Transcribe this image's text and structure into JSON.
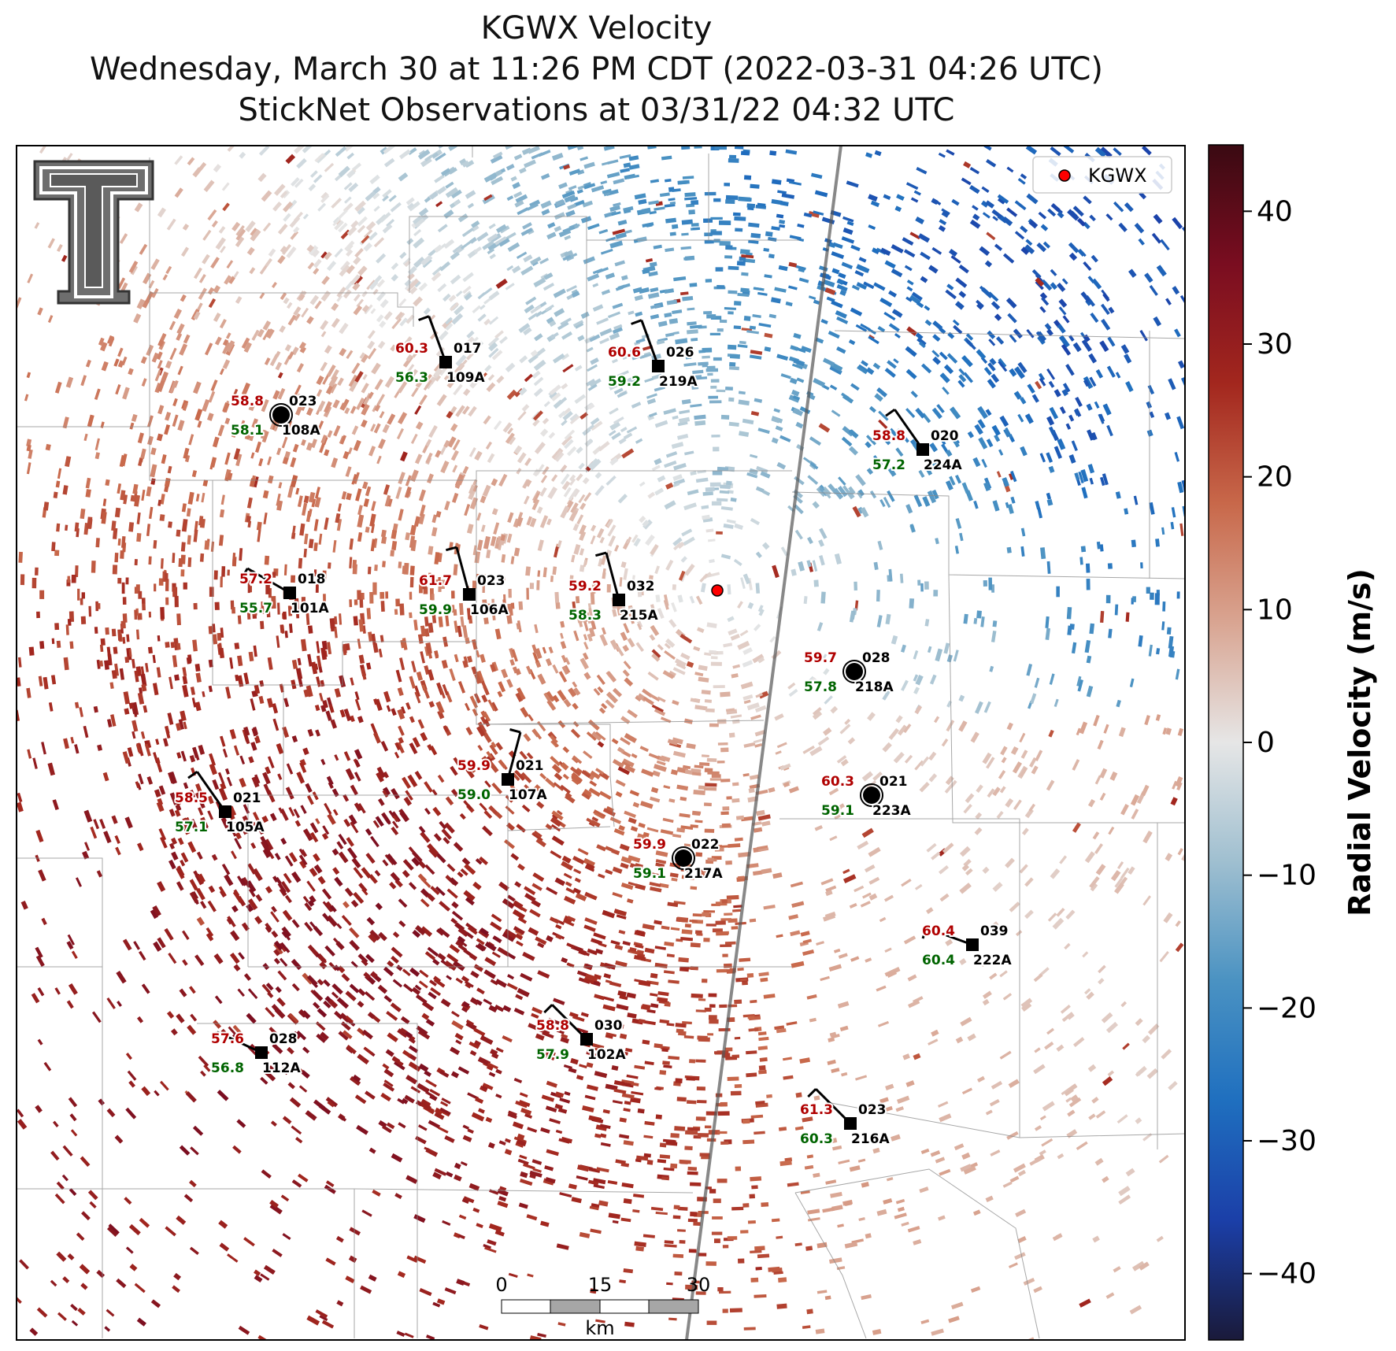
{
  "title": {
    "line1": "KGWX Velocity",
    "line2": "Wednesday, March 30 at 11:26 PM CDT (2022-03-31 04:26 UTC)",
    "line3": "StickNet Observations at 03/31/22 04:32 UTC"
  },
  "legend": {
    "label": "KGWX",
    "marker_color": "#ff0000"
  },
  "colorbar": {
    "label": "Radial Velocity (m/s)",
    "ticks": [
      "40",
      "30",
      "20",
      "10",
      "0",
      "−10",
      "−20",
      "−30",
      "−40"
    ],
    "range": [
      -45,
      45
    ],
    "colors": [
      "#1a1a3a",
      "#1b3fa8",
      "#1f6fbf",
      "#4a92c2",
      "#9fbfd0",
      "#e6e6e6",
      "#d9a592",
      "#c8684a",
      "#a3271e",
      "#7a0d20",
      "#3a0a12"
    ]
  },
  "scalebar": {
    "ticks": [
      "0",
      "15",
      "30"
    ],
    "unit": "km"
  },
  "logo": {
    "name": "Texas Tech Double T"
  },
  "stations": [
    {
      "id": "109A",
      "temp": "60.3",
      "dew": "56.3",
      "wind_dir": "017",
      "marker": "square"
    },
    {
      "id": "219A",
      "temp": "60.6",
      "dew": "59.2",
      "wind_dir": "026",
      "marker": "square"
    },
    {
      "id": "108A",
      "temp": "58.8",
      "dew": "58.1",
      "wind_dir": "023",
      "marker": "circle"
    },
    {
      "id": "224A",
      "temp": "58.8",
      "dew": "57.2",
      "wind_dir": "020",
      "marker": "square"
    },
    {
      "id": "101A",
      "temp": "57.2",
      "dew": "55.7",
      "wind_dir": "018",
      "marker": "square"
    },
    {
      "id": "106A",
      "temp": "61.7",
      "dew": "59.9",
      "wind_dir": "023",
      "marker": "square"
    },
    {
      "id": "215A",
      "temp": "59.2",
      "dew": "58.3",
      "wind_dir": "032",
      "marker": "square"
    },
    {
      "id": "218A",
      "temp": "59.7",
      "dew": "57.8",
      "wind_dir": "028",
      "marker": "circle"
    },
    {
      "id": "107A",
      "temp": "59.9",
      "dew": "59.0",
      "wind_dir": "021",
      "marker": "square"
    },
    {
      "id": "223A",
      "temp": "60.3",
      "dew": "59.1",
      "wind_dir": "021",
      "marker": "circle"
    },
    {
      "id": "105A",
      "temp": "58.5",
      "dew": "57.1",
      "wind_dir": "021",
      "marker": "square"
    },
    {
      "id": "217A",
      "temp": "59.9",
      "dew": "59.1",
      "wind_dir": "022",
      "marker": "circle"
    },
    {
      "id": "222A",
      "temp": "60.4",
      "dew": "60.4",
      "wind_dir": "039",
      "marker": "square"
    },
    {
      "id": "102A",
      "temp": "58.8",
      "dew": "57.9",
      "wind_dir": "030",
      "marker": "square"
    },
    {
      "id": "112A",
      "temp": "57.6",
      "dew": "56.8",
      "wind_dir": "028",
      "marker": "square"
    },
    {
      "id": "216A",
      "temp": "61.3",
      "dew": "60.3",
      "wind_dir": "023",
      "marker": "square"
    }
  ]
}
